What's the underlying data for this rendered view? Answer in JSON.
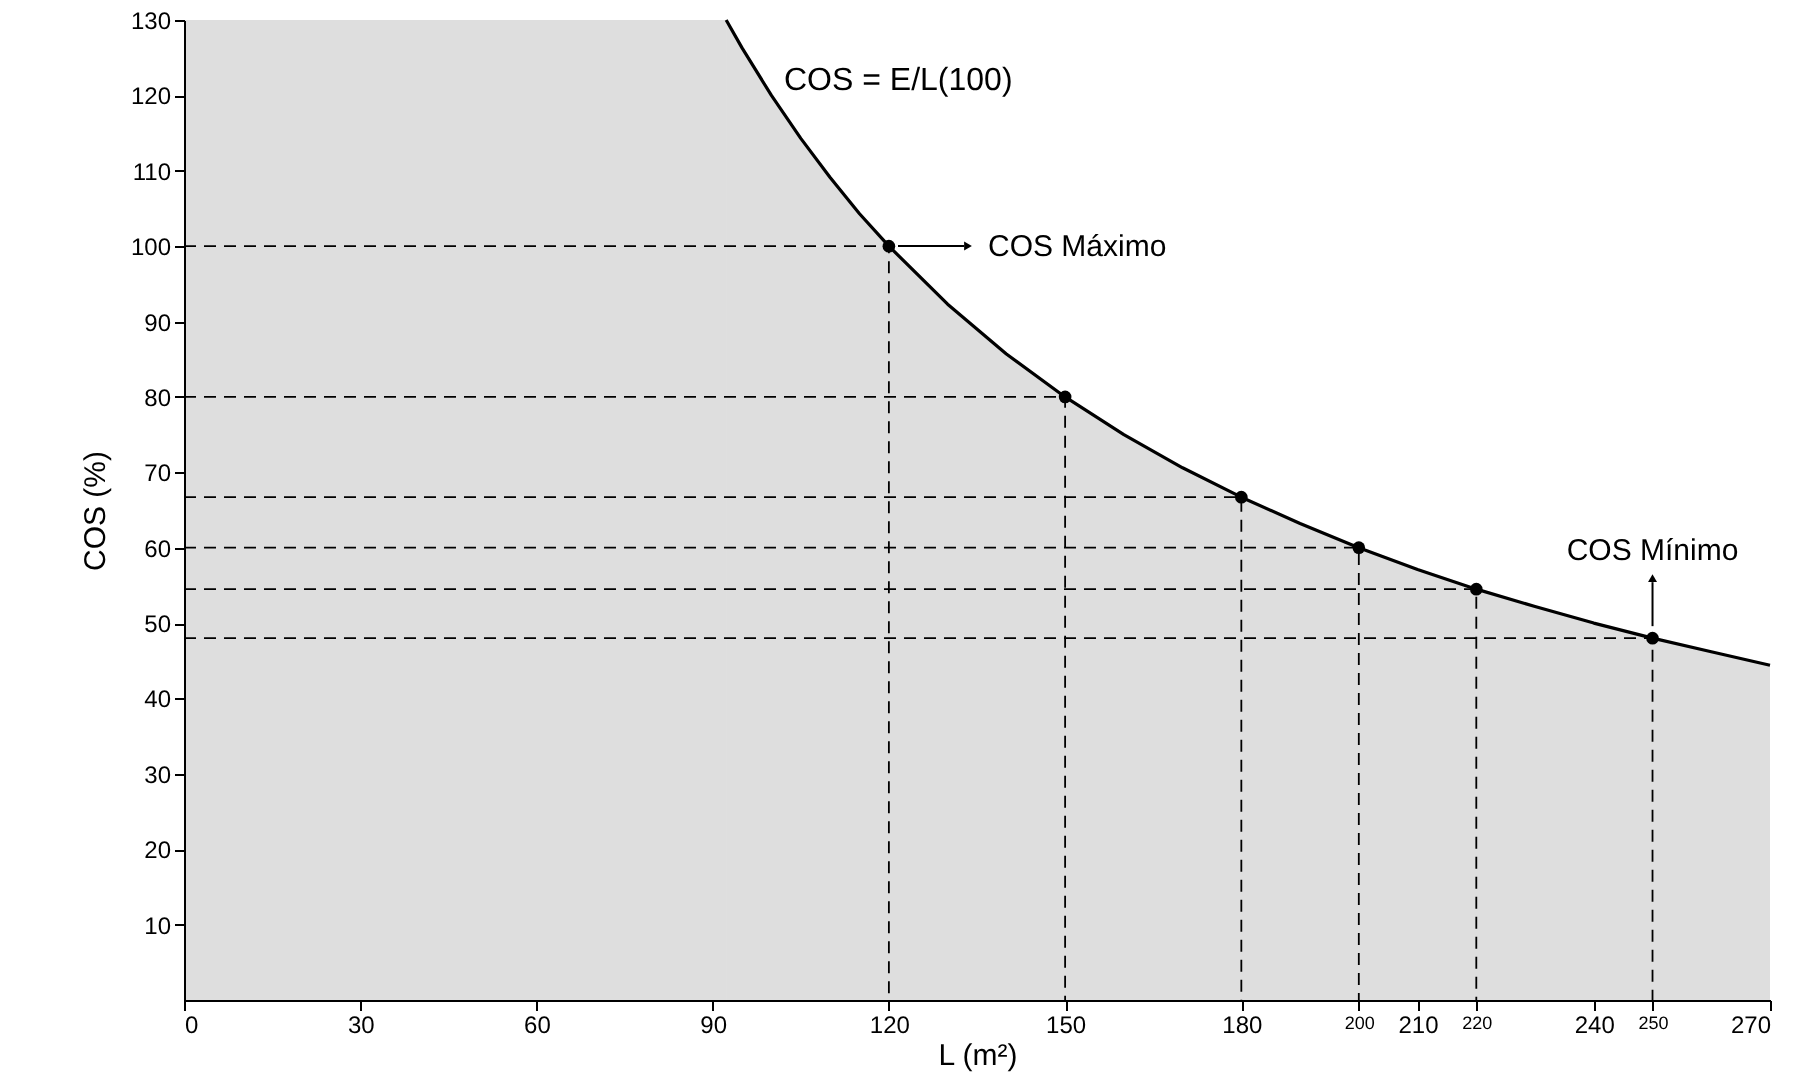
{
  "chart_data": {
    "type": "area",
    "xlabel": "L (m²)",
    "ylabel": "COS (%)",
    "xlim": [
      0,
      270
    ],
    "ylim": [
      0,
      130
    ],
    "xticks": [
      0,
      30,
      60,
      90,
      120,
      150,
      180,
      200,
      210,
      220,
      240,
      250,
      270
    ],
    "yticks": [
      10,
      20,
      30,
      40,
      50,
      60,
      70,
      80,
      90,
      100,
      110,
      120,
      130
    ],
    "grid": false,
    "bands": [
      {
        "axis": "x",
        "from": 0,
        "to": 92.3,
        "color": "#000000"
      }
    ],
    "series": [
      {
        "color": "#000000",
        "x": [
          92.3,
          95,
          100,
          105,
          110,
          115,
          120,
          130,
          140,
          150,
          160,
          170,
          180,
          190,
          200,
          210,
          220,
          230,
          240,
          250,
          260,
          270
        ],
        "values": [
          130,
          126.3,
          120,
          114.3,
          109.1,
          104.3,
          100,
          92.3,
          85.7,
          80,
          75,
          70.6,
          66.7,
          63.2,
          60,
          57.1,
          54.5,
          52.2,
          50,
          48,
          46.2,
          44.4
        ]
      },
      {
        "type": "line",
        "color": "#000000",
        "line_style": "dashed",
        "x": [
          0,
          120,
          120
        ],
        "values": [
          100,
          100,
          0
        ]
      },
      {
        "type": "line",
        "color": "#000000",
        "line_style": "dashed",
        "x": [
          0,
          150,
          150
        ],
        "values": [
          80,
          80,
          0
        ]
      },
      {
        "type": "line",
        "color": "#000000",
        "line_style": "dashed",
        "x": [
          0,
          180,
          180
        ],
        "values": [
          66.7,
          66.7,
          0
        ]
      },
      {
        "type": "line",
        "color": "#000000",
        "line_style": "dashed",
        "x": [
          0,
          200,
          200
        ],
        "values": [
          60,
          60,
          0
        ]
      },
      {
        "type": "line",
        "color": "#000000",
        "line_style": "dashed",
        "x": [
          0,
          220,
          220
        ],
        "values": [
          54.5,
          54.5,
          0
        ]
      },
      {
        "type": "line",
        "color": "#000000",
        "line_style": "dashed",
        "x": [
          0,
          250,
          250
        ],
        "values": [
          48,
          48,
          0
        ]
      },
      {
        "type": "scatter",
        "color": "#000000",
        "marker": "circle",
        "x": [
          120,
          150,
          180,
          200,
          220,
          250
        ],
        "values": [
          100,
          80,
          66.7,
          60,
          54.5,
          48
        ]
      }
    ],
    "annotations": [
      "COS = E/L(100)",
      "COS Máximo",
      {
        "text": "COS Mínimo",
        "x": 250,
        "y": 48
      }
    ]
  }
}
